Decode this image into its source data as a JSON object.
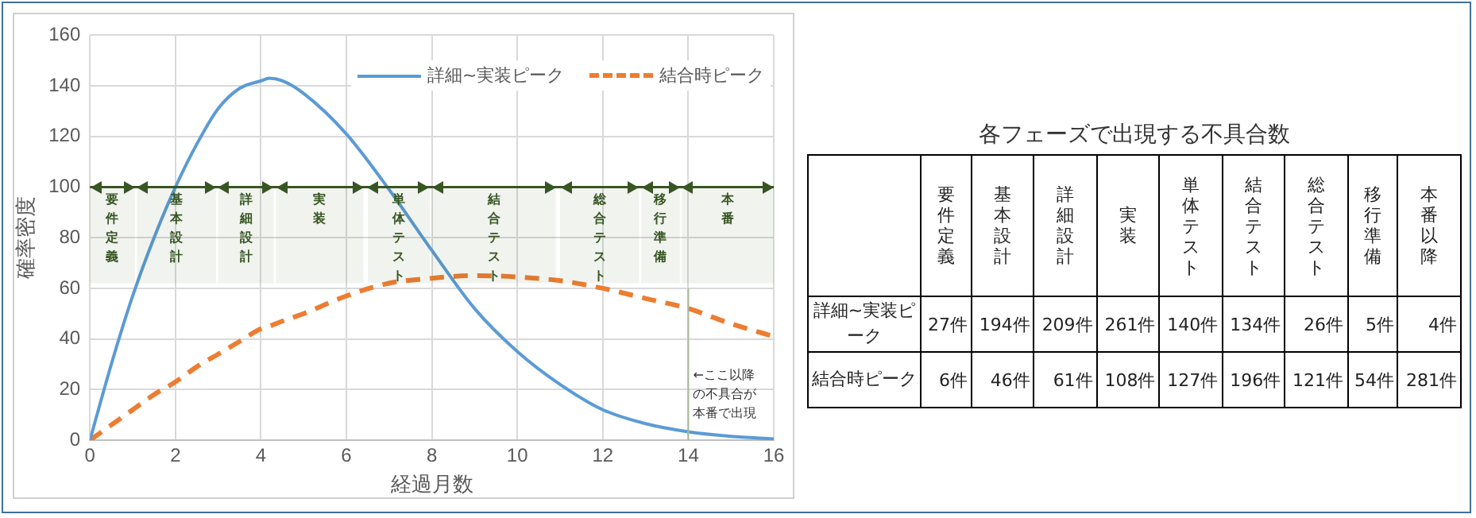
{
  "chart_data": [
    {
      "type": "line",
      "xlabel": "経過月数",
      "ylabel": "確率密度",
      "x": [
        0,
        0.5,
        1,
        1.5,
        2,
        2.5,
        3,
        3.5,
        4,
        4.2,
        4.5,
        5,
        6,
        7,
        8,
        9,
        10,
        11,
        12,
        13,
        14,
        15,
        16
      ],
      "series": [
        {
          "name": "詳細~実装ピーク",
          "color": "#5b9bd5",
          "line_style": "solid",
          "values": [
            0,
            30,
            57,
            80,
            100,
            117,
            131,
            139,
            142,
            143,
            142,
            137,
            121,
            99,
            75,
            52,
            35,
            22,
            12,
            6.5,
            3.3,
            1.5,
            0.5
          ]
        },
        {
          "name": "結合時ピーク",
          "color": "#ed7d31",
          "line_style": "dashed",
          "values": [
            0,
            6,
            12,
            18,
            23,
            29,
            34,
            39,
            44,
            45,
            47,
            50,
            57,
            62,
            64,
            65,
            64.5,
            63,
            60,
            56,
            52,
            46,
            41
          ]
        }
      ],
      "xlim": [
        0,
        16
      ],
      "xticks": [
        0,
        2,
        4,
        6,
        8,
        10,
        12,
        14,
        16
      ],
      "ylim": [
        0,
        160
      ],
      "yticks": [
        0,
        20,
        40,
        60,
        80,
        100,
        120,
        140,
        160
      ],
      "grid": true,
      "legend": "top right",
      "ref_lines": [
        {
          "axis": "y",
          "value": 100,
          "label": null,
          "color": "#375623"
        },
        {
          "axis": "x",
          "value": 14,
          "label": "←ここ以降の不具合が本番で出現",
          "color": "#a9b89a"
        }
      ],
      "bands": [
        {
          "axis": "x",
          "from": 0,
          "to": 1.05,
          "label": "要件定義",
          "color": "#375623"
        },
        {
          "axis": "x",
          "from": 1.1,
          "to": 2.95,
          "label": "基本設計",
          "color": "#375623"
        },
        {
          "axis": "x",
          "from": 3,
          "to": 4.3,
          "label": "詳細設計",
          "color": "#375623"
        },
        {
          "axis": "x",
          "from": 4.35,
          "to": 6.4,
          "label": "実装",
          "color": "#375623"
        },
        {
          "axis": "x",
          "from": 6.5,
          "to": 7.95,
          "label": "単体テスト",
          "color": "#375623"
        },
        {
          "axis": "x",
          "from": 8,
          "to": 10.9,
          "label": "結合テスト",
          "color": "#375623"
        },
        {
          "axis": "x",
          "from": 11,
          "to": 12.85,
          "label": "総合テスト",
          "color": "#375623"
        },
        {
          "axis": "x",
          "from": 12.9,
          "to": 13.8,
          "label": "移行準備",
          "color": "#375623"
        },
        {
          "axis": "x",
          "from": 13.85,
          "to": 16,
          "label": "本番",
          "color": "#375623"
        }
      ]
    },
    {
      "type": "other",
      "title": "各フェーズで出現する不具合数",
      "categories": [
        "要件定義",
        "基本設計",
        "詳細設計",
        "実装",
        "単体テスト",
        "結合テスト",
        "総合テスト",
        "移行準備",
        "本番以降"
      ],
      "series": [
        {
          "name": "詳細~実装ピーク",
          "values": [
            27,
            194,
            209,
            261,
            140,
            134,
            26,
            5,
            4
          ],
          "value_labels": [
            "27件",
            "194件",
            "209件",
            "261件",
            "140件",
            "134件",
            "26件",
            "5件",
            "4件"
          ]
        },
        {
          "name": "結合時ピーク",
          "values": [
            6,
            46,
            61,
            108,
            127,
            196,
            121,
            54,
            281
          ],
          "value_labels": [
            "6件",
            "46件",
            "61件",
            "108件",
            "127件",
            "196件",
            "121件",
            "54件",
            "281件"
          ]
        }
      ]
    }
  ]
}
